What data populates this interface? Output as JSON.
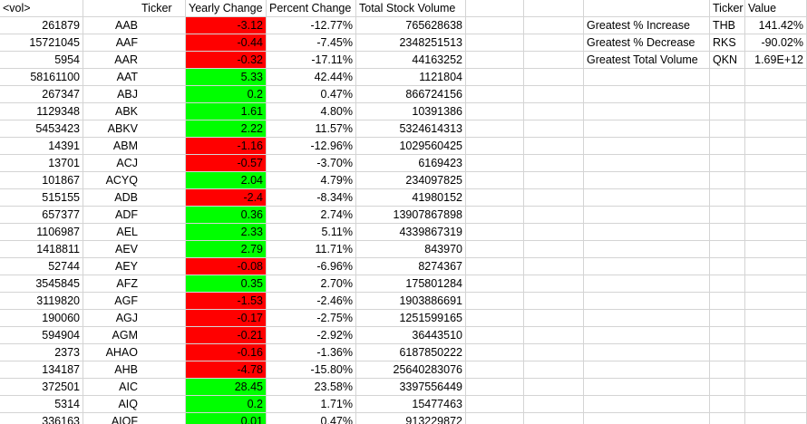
{
  "headers": [
    "<vol>",
    "Ticker",
    "Yearly Change",
    "Percent Change",
    "Total Stock Volume"
  ],
  "summary_headers": [
    "Ticker",
    "Value"
  ],
  "colors": {
    "positive": "#00ff00",
    "negative": "#ff0000",
    "gridline": "#d4d4d4"
  },
  "rows": [
    {
      "vol": "261879",
      "ticker": "AAB",
      "change": "-3.12",
      "sign": "neg",
      "pct": "-12.77%",
      "total": "765628638"
    },
    {
      "vol": "15721045",
      "ticker": "AAF",
      "change": "-0.44",
      "sign": "neg",
      "pct": "-7.45%",
      "total": "2348251513"
    },
    {
      "vol": "5954",
      "ticker": "AAR",
      "change": "-0.32",
      "sign": "neg",
      "pct": "-17.11%",
      "total": "44163252"
    },
    {
      "vol": "58161100",
      "ticker": "AAT",
      "change": "5.33",
      "sign": "pos",
      "pct": "42.44%",
      "total": "1121804"
    },
    {
      "vol": "267347",
      "ticker": "ABJ",
      "change": "0.2",
      "sign": "pos",
      "pct": "0.47%",
      "total": "866724156"
    },
    {
      "vol": "1129348",
      "ticker": "ABK",
      "change": "1.61",
      "sign": "pos",
      "pct": "4.80%",
      "total": "10391386"
    },
    {
      "vol": "5453423",
      "ticker": "ABKV",
      "change": "2.22",
      "sign": "pos",
      "pct": "11.57%",
      "total": "5324614313"
    },
    {
      "vol": "14391",
      "ticker": "ABM",
      "change": "-1.16",
      "sign": "neg",
      "pct": "-12.96%",
      "total": "1029560425"
    },
    {
      "vol": "13701",
      "ticker": "ACJ",
      "change": "-0.57",
      "sign": "neg",
      "pct": "-3.70%",
      "total": "6169423"
    },
    {
      "vol": "101867",
      "ticker": "ACYQ",
      "change": "2.04",
      "sign": "pos",
      "pct": "4.79%",
      "total": "234097825"
    },
    {
      "vol": "515155",
      "ticker": "ADB",
      "change": "-2.4",
      "sign": "neg",
      "pct": "-8.34%",
      "total": "41980152"
    },
    {
      "vol": "657377",
      "ticker": "ADF",
      "change": "0.36",
      "sign": "pos",
      "pct": "2.74%",
      "total": "13907867898"
    },
    {
      "vol": "1106987",
      "ticker": "AEL",
      "change": "2.33",
      "sign": "pos",
      "pct": "5.11%",
      "total": "4339867319"
    },
    {
      "vol": "1418811",
      "ticker": "AEV",
      "change": "2.79",
      "sign": "pos",
      "pct": "11.71%",
      "total": "843970"
    },
    {
      "vol": "52744",
      "ticker": "AEY",
      "change": "-0.08",
      "sign": "neg",
      "pct": "-6.96%",
      "total": "8274367"
    },
    {
      "vol": "3545845",
      "ticker": "AFZ",
      "change": "0.35",
      "sign": "pos",
      "pct": "2.70%",
      "total": "175801284"
    },
    {
      "vol": "3119820",
      "ticker": "AGF",
      "change": "-1.53",
      "sign": "neg",
      "pct": "-2.46%",
      "total": "1903886691"
    },
    {
      "vol": "190060",
      "ticker": "AGJ",
      "change": "-0.17",
      "sign": "neg",
      "pct": "-2.75%",
      "total": "1251599165"
    },
    {
      "vol": "594904",
      "ticker": "AGM",
      "change": "-0.21",
      "sign": "neg",
      "pct": "-2.92%",
      "total": "36443510"
    },
    {
      "vol": "2373",
      "ticker": "AHAO",
      "change": "-0.16",
      "sign": "neg",
      "pct": "-1.36%",
      "total": "6187850222"
    },
    {
      "vol": "134187",
      "ticker": "AHB",
      "change": "-4.78",
      "sign": "neg",
      "pct": "-15.80%",
      "total": "25640283076"
    },
    {
      "vol": "372501",
      "ticker": "AIC",
      "change": "28.45",
      "sign": "pos",
      "pct": "23.58%",
      "total": "3397556449"
    },
    {
      "vol": "5314",
      "ticker": "AIQ",
      "change": "0.2",
      "sign": "pos",
      "pct": "1.71%",
      "total": "15477463"
    },
    {
      "vol": "336163",
      "ticker": "AIQF",
      "change": "0.01",
      "sign": "pos",
      "pct": "0.47%",
      "total": "913229872"
    }
  ],
  "summary": [
    {
      "label": "Greatest % Increase",
      "ticker": "THB",
      "value": "141.42%"
    },
    {
      "label": "Greatest % Decrease",
      "ticker": "RKS",
      "value": "-90.02%"
    },
    {
      "label": "Greatest Total Volume",
      "ticker": "QKN",
      "value": "1.69E+12"
    }
  ]
}
